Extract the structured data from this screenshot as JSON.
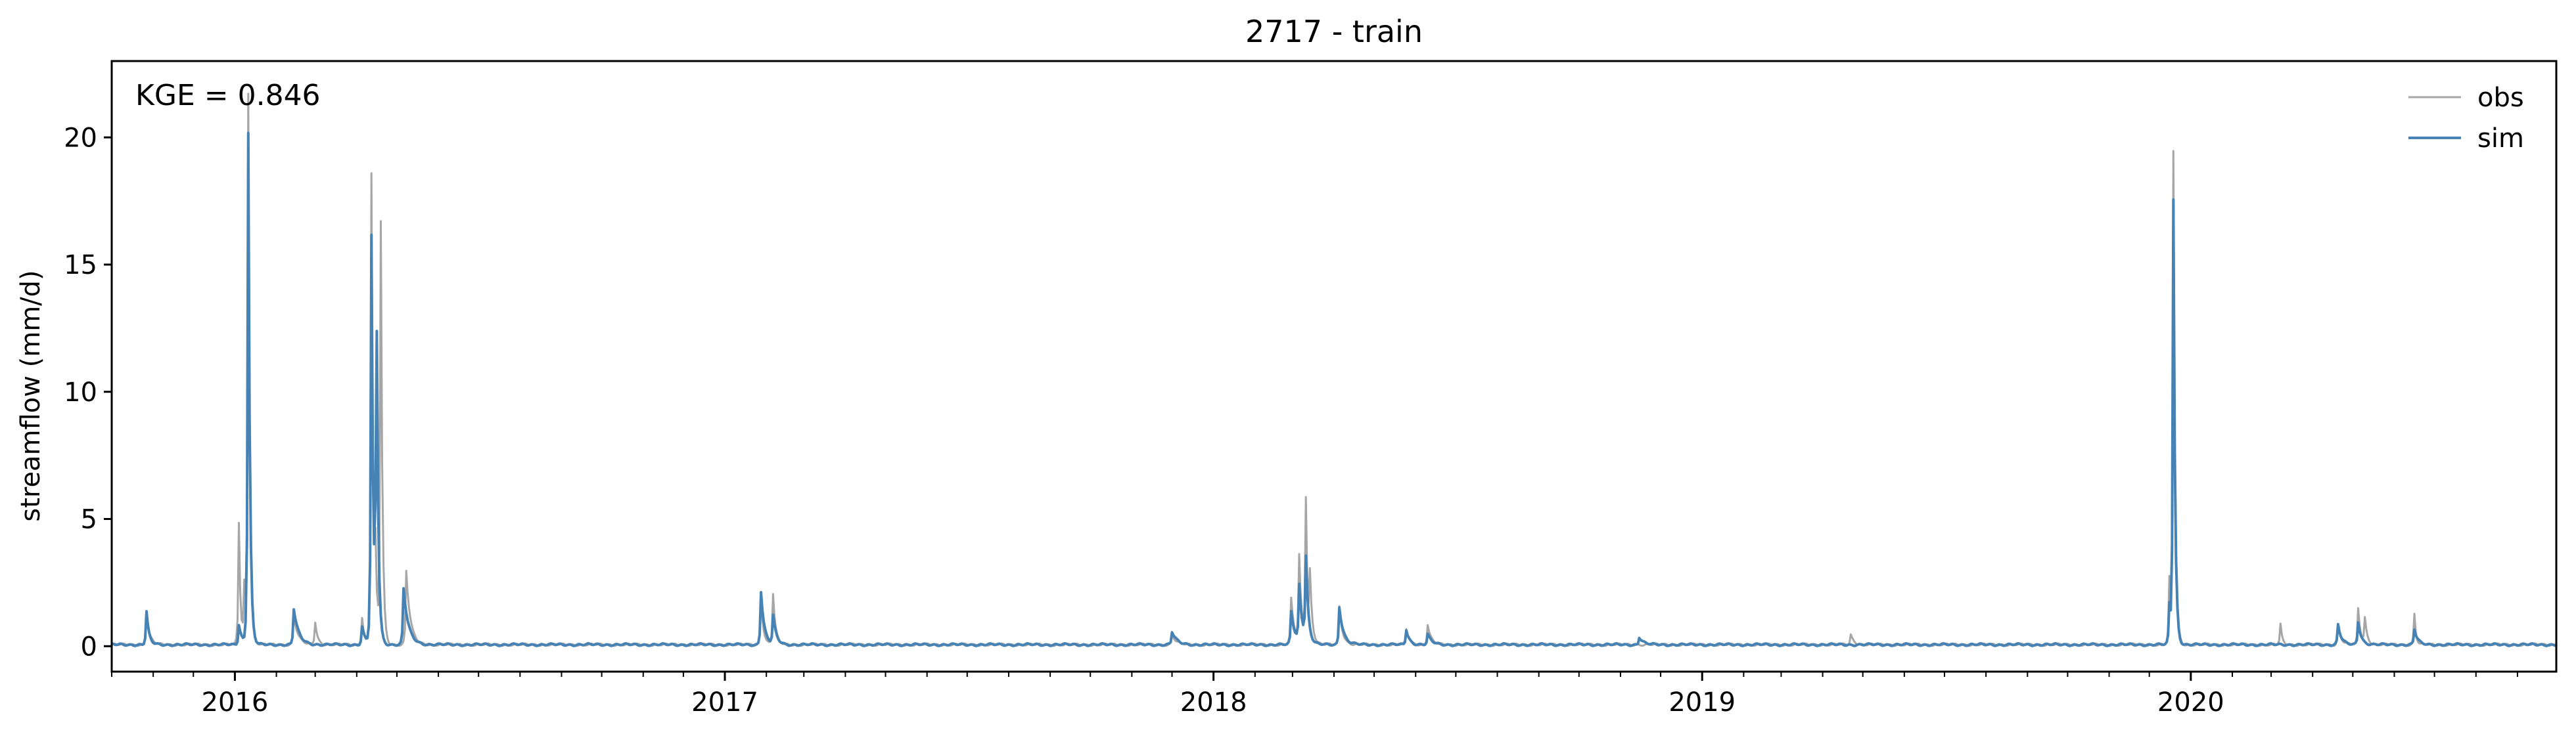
{
  "chart_data": {
    "type": "line",
    "title": "2717 - train",
    "xlabel": "",
    "ylabel": "streamflow (mm/d)",
    "annotation": "KGE = 0.846",
    "xlim": [
      "2015-10-01",
      "2020-09-30"
    ],
    "ylim": [
      -1,
      23
    ],
    "yticks": [
      0,
      5,
      10,
      15,
      20
    ],
    "xticks": [
      {
        "date": "2016-01-01",
        "label": "2016"
      },
      {
        "date": "2017-01-01",
        "label": "2017"
      },
      {
        "date": "2018-01-01",
        "label": "2018"
      },
      {
        "date": "2019-01-01",
        "label": "2019"
      },
      {
        "date": "2020-01-01",
        "label": "2020"
      }
    ],
    "grid": false,
    "legend_position": "top-right",
    "baseflow": 0.06,
    "series": [
      {
        "name": "obs",
        "color": "#a6a6a6",
        "peaks": [
          [
            "2015-10-27",
            1.1,
            4
          ],
          [
            "2016-01-04",
            4.8,
            2
          ],
          [
            "2016-01-08",
            2.2,
            2
          ],
          [
            "2016-01-11",
            21.5,
            2
          ],
          [
            "2016-02-14",
            1.2,
            5
          ],
          [
            "2016-03-01",
            0.9,
            3
          ],
          [
            "2016-04-05",
            1.1,
            3
          ],
          [
            "2016-04-12",
            18.5,
            2
          ],
          [
            "2016-04-15",
            3.0,
            2
          ],
          [
            "2016-04-19",
            16.5,
            2
          ],
          [
            "2016-05-08",
            2.9,
            5
          ],
          [
            "2017-01-28",
            1.9,
            3
          ],
          [
            "2017-02-06",
            2.0,
            3
          ],
          [
            "2017-12-01",
            0.4,
            5
          ],
          [
            "2018-02-28",
            1.8,
            4
          ],
          [
            "2018-03-06",
            3.4,
            3
          ],
          [
            "2018-03-11",
            5.6,
            2
          ],
          [
            "2018-03-14",
            2.5,
            3
          ],
          [
            "2018-04-05",
            1.5,
            4
          ],
          [
            "2018-05-25",
            0.6,
            4
          ],
          [
            "2018-06-10",
            0.8,
            4
          ],
          [
            "2019-04-22",
            0.4,
            4
          ],
          [
            "2019-12-16",
            2.5,
            2
          ],
          [
            "2019-12-19",
            19.2,
            2
          ],
          [
            "2020-03-08",
            0.8,
            2
          ],
          [
            "2020-04-20",
            0.7,
            4
          ],
          [
            "2020-05-05",
            1.4,
            3
          ],
          [
            "2020-05-10",
            1.0,
            3
          ],
          [
            "2020-06-16",
            1.2,
            2
          ]
        ]
      },
      {
        "name": "sim",
        "color": "#4682b4",
        "peaks": [
          [
            "2015-10-27",
            1.3,
            3
          ],
          [
            "2016-01-04",
            0.8,
            4
          ],
          [
            "2016-01-11",
            20.1,
            2
          ],
          [
            "2016-02-14",
            1.4,
            6
          ],
          [
            "2016-04-05",
            0.7,
            4
          ],
          [
            "2016-04-12",
            16.0,
            2
          ],
          [
            "2016-04-15",
            2.2,
            3
          ],
          [
            "2016-04-16",
            10.5,
            2
          ],
          [
            "2016-05-06",
            2.2,
            6
          ],
          [
            "2017-01-28",
            2.1,
            4
          ],
          [
            "2017-02-06",
            1.1,
            4
          ],
          [
            "2017-12-01",
            0.5,
            6
          ],
          [
            "2018-02-28",
            1.3,
            5
          ],
          [
            "2018-03-06",
            2.2,
            4
          ],
          [
            "2018-03-11",
            3.2,
            3
          ],
          [
            "2018-04-05",
            1.5,
            5
          ],
          [
            "2018-05-25",
            0.6,
            4
          ],
          [
            "2018-06-10",
            0.4,
            5
          ],
          [
            "2018-11-15",
            0.3,
            5
          ],
          [
            "2019-12-16",
            1.5,
            2
          ],
          [
            "2019-12-19",
            17.4,
            2
          ],
          [
            "2020-04-20",
            0.8,
            4
          ],
          [
            "2020-05-05",
            0.9,
            4
          ],
          [
            "2020-06-16",
            0.6,
            4
          ]
        ]
      }
    ]
  }
}
